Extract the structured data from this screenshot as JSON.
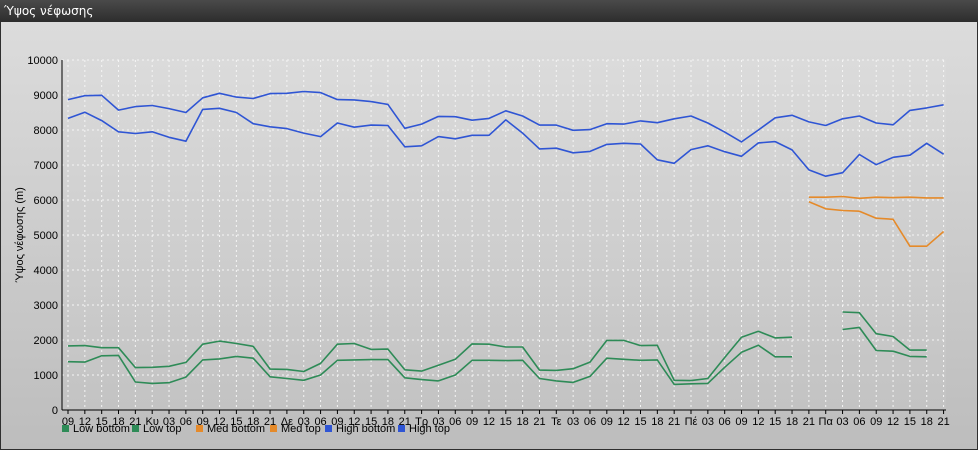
{
  "window": {
    "title": "Ύψος νέφωσης"
  },
  "chart_data": {
    "type": "line",
    "title": "",
    "ylabel": "Ύψος νέφωσης (m)",
    "ylim": [
      0,
      10000
    ],
    "yticks": [
      0,
      1000,
      2000,
      3000,
      4000,
      5000,
      6000,
      7000,
      8000,
      9000,
      10000
    ],
    "grid": true,
    "legend_position": "bottom-left",
    "categories": [
      "09",
      "12",
      "15",
      "18",
      "21",
      "Κυ",
      "03",
      "06",
      "09",
      "12",
      "15",
      "18",
      "21",
      "Δε",
      "03",
      "06",
      "09",
      "12",
      "15",
      "18",
      "21",
      "Τρ",
      "03",
      "06",
      "09",
      "12",
      "15",
      "18",
      "21",
      "Τε",
      "03",
      "06",
      "09",
      "12",
      "15",
      "18",
      "21",
      "Πέ",
      "03",
      "06",
      "09",
      "12",
      "15",
      "18",
      "21",
      "Πα",
      "03",
      "06",
      "09",
      "12",
      "15",
      "18",
      "21"
    ],
    "series": [
      {
        "name": "Low bottom",
        "color": "#2e8b57",
        "values": [
          1380,
          1370,
          1550,
          1560,
          800,
          760,
          780,
          940,
          1430,
          1460,
          1530,
          1480,
          950,
          900,
          850,
          1000,
          1420,
          1430,
          1440,
          1440,
          920,
          870,
          830,
          1000,
          1420,
          1420,
          1410,
          1420,
          900,
          830,
          790,
          960,
          1480,
          1450,
          1420,
          1430,
          730,
          750,
          760,
          1220,
          1650,
          1850,
          1520,
          1520,
          null,
          null,
          2300,
          2360,
          1700,
          1680,
          1530,
          1520,
          null
        ]
      },
      {
        "name": "Low top",
        "color": "#2e8b57",
        "values": [
          1830,
          1840,
          1780,
          1780,
          1210,
          1220,
          1250,
          1360,
          1880,
          1970,
          1900,
          1820,
          1170,
          1160,
          1100,
          1330,
          1880,
          1900,
          1730,
          1740,
          1150,
          1110,
          1280,
          1450,
          1890,
          1880,
          1800,
          1800,
          1140,
          1130,
          1180,
          1370,
          1990,
          1990,
          1840,
          1850,
          850,
          840,
          900,
          1500,
          2080,
          2250,
          2060,
          2080,
          null,
          null,
          2800,
          2780,
          2180,
          2100,
          1710,
          1710,
          null
        ]
      },
      {
        "name": "Med bottom",
        "color": "#e58a2a",
        "values": [
          null,
          null,
          null,
          null,
          null,
          null,
          null,
          null,
          null,
          null,
          null,
          null,
          null,
          null,
          null,
          null,
          null,
          null,
          null,
          null,
          null,
          null,
          null,
          null,
          null,
          null,
          null,
          null,
          null,
          null,
          null,
          null,
          null,
          null,
          null,
          null,
          null,
          null,
          null,
          null,
          null,
          null,
          null,
          null,
          5950,
          5750,
          5700,
          5680,
          5480,
          5450,
          4680,
          4680,
          5100
        ]
      },
      {
        "name": "Med top",
        "color": "#e58a2a",
        "values": [
          null,
          null,
          null,
          null,
          null,
          null,
          null,
          null,
          null,
          null,
          null,
          null,
          null,
          null,
          null,
          null,
          null,
          null,
          null,
          null,
          null,
          null,
          null,
          null,
          null,
          null,
          null,
          null,
          null,
          null,
          null,
          null,
          null,
          null,
          null,
          null,
          null,
          null,
          null,
          null,
          null,
          null,
          null,
          null,
          6080,
          6080,
          6100,
          6050,
          6080,
          6070,
          6080,
          6060,
          6060
        ]
      },
      {
        "name": "High bottom",
        "color": "#2f55d4",
        "values": [
          8330,
          8510,
          8270,
          7950,
          7900,
          7950,
          7790,
          7680,
          8590,
          8620,
          8500,
          8180,
          8090,
          8040,
          7910,
          7810,
          8200,
          8080,
          8140,
          8130,
          7520,
          7550,
          7810,
          7750,
          7850,
          7850,
          8290,
          7910,
          7460,
          7480,
          7350,
          7390,
          7590,
          7620,
          7600,
          7150,
          7050,
          7440,
          7550,
          7380,
          7250,
          7630,
          7670,
          7430,
          6860,
          6680,
          6780,
          7300,
          7010,
          7220,
          7280,
          7620,
          7310
        ]
      },
      {
        "name": "High top",
        "color": "#2f55d4",
        "values": [
          8870,
          8980,
          8990,
          8570,
          8670,
          8700,
          8610,
          8500,
          8920,
          9050,
          8940,
          8900,
          9040,
          9050,
          9100,
          9070,
          8870,
          8860,
          8810,
          8730,
          8050,
          8170,
          8390,
          8380,
          8280,
          8330,
          8550,
          8400,
          8140,
          8140,
          7990,
          8010,
          8180,
          8170,
          8260,
          8210,
          8320,
          8400,
          8200,
          7940,
          7660,
          8000,
          8350,
          8420,
          8230,
          8130,
          8320,
          8400,
          8200,
          8150,
          8560,
          8630,
          8720
        ]
      }
    ]
  }
}
